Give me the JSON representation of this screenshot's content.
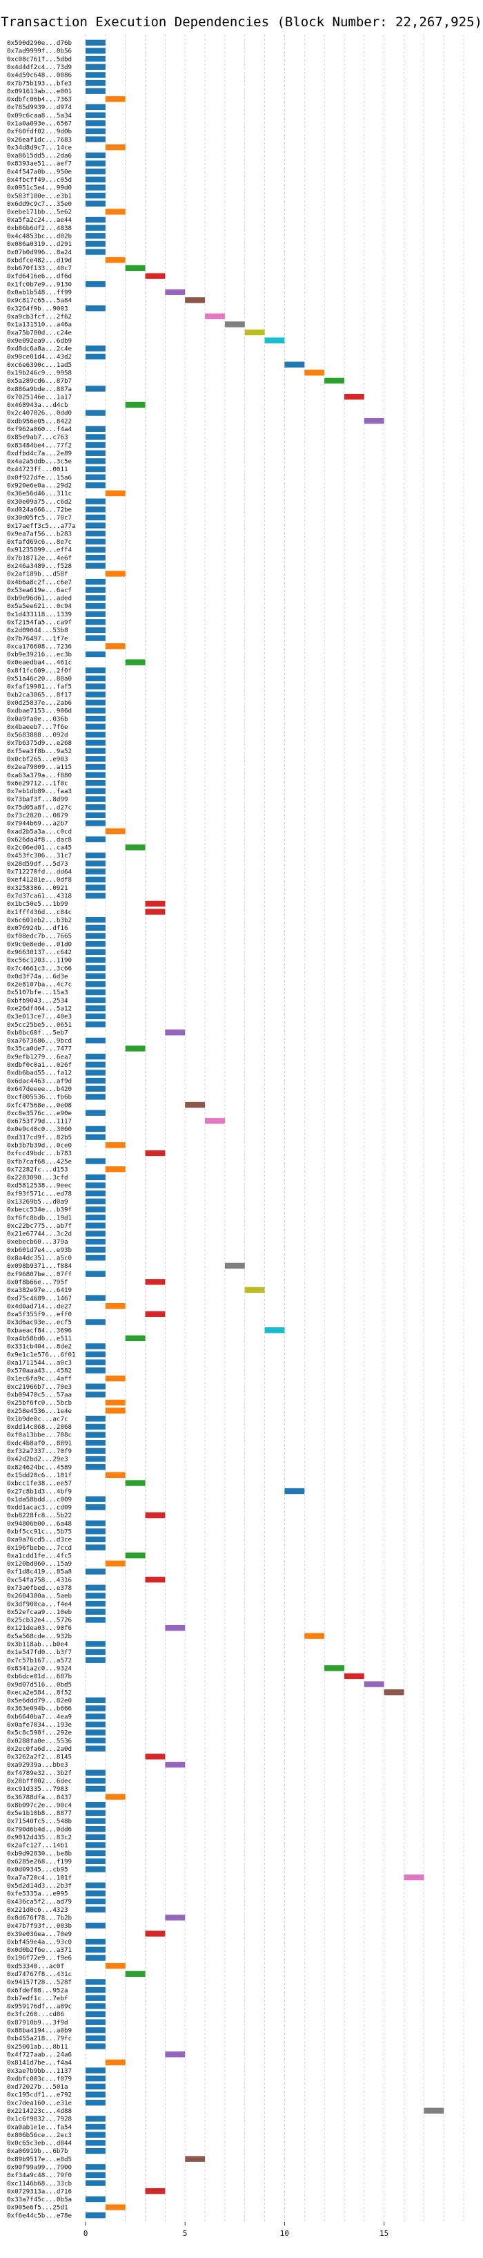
{
  "chart_data": {
    "type": "gantt-bar",
    "title": "Transaction Execution Dependencies (Block Number: 22,267,925)",
    "xlim": [
      0,
      19
    ],
    "x_ticks": [
      0,
      5,
      10,
      15
    ],
    "grid": "vertical-dashed",
    "colors": [
      "#1f77b4",
      "#ff7f0e",
      "#2ca02c",
      "#d62728",
      "#9467bd",
      "#8c564b",
      "#e377c2",
      "#7f7f7f",
      "#bcbd22",
      "#17becf"
    ],
    "rows": [
      [
        "0x590d290e...d76b",
        0
      ],
      [
        "0x7ad9999f...0b56",
        0
      ],
      [
        "0xc08c761f...5dbd",
        0
      ],
      [
        "0x4d4df2c4...73d9",
        0
      ],
      [
        "0x4d59c648...0086",
        0
      ],
      [
        "0x7b75b193...bfe3",
        0
      ],
      [
        "0x091613ab...e001",
        0
      ],
      [
        "0xdbfc06b4...7363",
        1
      ],
      [
        "0x785d9939...d974",
        0
      ],
      [
        "0x09c6caa8...5a34",
        0
      ],
      [
        "0x1a0a093e...6567",
        0
      ],
      [
        "0xf60fdf02...9d0b",
        0
      ],
      [
        "0x26eaf1dc...7683",
        0
      ],
      [
        "0x34d8d9c7...14ce",
        1
      ],
      [
        "0xa8615dd5...2da6",
        0
      ],
      [
        "0x8393ae51...aef7",
        0
      ],
      [
        "0x4f547a0b...950e",
        0
      ],
      [
        "0x4fbcff49...c05d",
        0
      ],
      [
        "0x0951c5e4...99d0",
        0
      ],
      [
        "0x583f180e...e3b1",
        0
      ],
      [
        "0x6dd9c9c7...35e0",
        0
      ],
      [
        "0xebe171bb...5e62",
        1
      ],
      [
        "0xa5fa2c24...ae44",
        0
      ],
      [
        "0xb86b6df2...4838",
        0
      ],
      [
        "0x4c4853bc...d02b",
        0
      ],
      [
        "0x086a0319...d291",
        0
      ],
      [
        "0x07b0d996...8a24",
        0
      ],
      [
        "0xbdfce482...d19d",
        1
      ],
      [
        "0xb670f133...40c7",
        2
      ],
      [
        "0xfd6416e6...df6d",
        3
      ],
      [
        "0x1fc0b7e9...9130",
        0
      ],
      [
        "0x0ab1b548...ff99",
        4
      ],
      [
        "0x9c817c65...5a84",
        5
      ],
      [
        "0x3264f9b...9003",
        0
      ],
      [
        "0xa9cb3fcf...2f62",
        6
      ],
      [
        "0x1a131510...a46a",
        7
      ],
      [
        "0xa75b780d...c24e",
        8
      ],
      [
        "0x9e092ea9...6db9",
        9
      ],
      [
        "0xd8dc6a8a...2c4e",
        0
      ],
      [
        "0x90ce01d4...43d2",
        0
      ],
      [
        "0xc6e6390c...1ad5",
        10
      ],
      [
        "0x19b246c9...9958",
        11
      ],
      [
        "0x5a289cd6...87b7",
        12
      ],
      [
        "0x886a9bde...887a",
        0
      ],
      [
        "0x7025146e...1a17",
        13
      ],
      [
        "0x468943a...d4cb",
        2
      ],
      [
        "0x2c407026...0dd0",
        0
      ],
      [
        "0xdb956e05...8422",
        14
      ],
      [
        "0xf962a060...f4a4",
        0
      ],
      [
        "0x85e9ab7...c763",
        0
      ],
      [
        "0x83484be4...77f2",
        0
      ],
      [
        "0xdfbd4c7a...2e89",
        0
      ],
      [
        "0x4a2a5ddb...3c5e",
        0
      ],
      [
        "0x44723ff...0011",
        0
      ],
      [
        "0x0f927dfe...15a6",
        0
      ],
      [
        "0x920e6e0a...29d2",
        0
      ],
      [
        "0x36e56d46...311c",
        1
      ],
      [
        "0x30e09a75...c6d2",
        0
      ],
      [
        "0xd024a666...72be",
        0
      ],
      [
        "0x30d05fc5...70c7",
        0
      ],
      [
        "0x17aeff3c5...a77a",
        0
      ],
      [
        "0x9ea7af56...b283",
        0
      ],
      [
        "0xfafd69c6...8e7c",
        0
      ],
      [
        "0x91235899...eff4",
        0
      ],
      [
        "0x7b18712e...4e6f",
        0
      ],
      [
        "0x246a3489...f528",
        0
      ],
      [
        "0x2af189b...d58f",
        1
      ],
      [
        "0x4b6a8c2f...c6e7",
        0
      ],
      [
        "0x53ea619e...6acf",
        0
      ],
      [
        "0xb9e96d61...aded",
        0
      ],
      [
        "0x5a5ee621...0c94",
        0
      ],
      [
        "0x1d433118...1339",
        0
      ],
      [
        "0xf2154fa5...ca9f",
        0
      ],
      [
        "0x2d09044...53b8",
        0
      ],
      [
        "0x7b76497...1f7e",
        0
      ],
      [
        "0xca176608...7236",
        1
      ],
      [
        "0xb9e39216...ec3b",
        0
      ],
      [
        "0x0eaedba4...461c",
        2
      ],
      [
        "0x8f1fc609...2f0f",
        0
      ],
      [
        "0x51a46c20...88a0",
        0
      ],
      [
        "0xfaf19981...faf5",
        0
      ],
      [
        "0xb2ca3865...8f17",
        0
      ],
      [
        "0x0d25837e...2ab6",
        0
      ],
      [
        "0xdbae7153...906d",
        0
      ],
      [
        "0x0a9fa0e...036b",
        0
      ],
      [
        "0x4baeeb7...7f6e",
        0
      ],
      [
        "0x5683808...092d",
        0
      ],
      [
        "0x7b6375d9...e268",
        0
      ],
      [
        "0xf5ea3f8b...9a52",
        0
      ],
      [
        "0x0cbf265...e903",
        0
      ],
      [
        "0x2ea79809...a115",
        0
      ],
      [
        "0xa63a379a...f880",
        0
      ],
      [
        "0x6e29712...1f0c",
        0
      ],
      [
        "0x7eb1db89...faa3",
        0
      ],
      [
        "0x73baf3f...8d99",
        0
      ],
      [
        "0x75d05a8f...d27c",
        0
      ],
      [
        "0x73c2820...0879",
        0
      ],
      [
        "0x7944b69...a2b7",
        0
      ],
      [
        "0xad2b5a3a...c0cd",
        1
      ],
      [
        "0x626da4f8...dac8",
        0
      ],
      [
        "0x2c06ed01...ca45",
        2
      ],
      [
        "0x453fc306...31c7",
        0
      ],
      [
        "0x28d59df...5d73",
        0
      ],
      [
        "0x712270fd...dd64",
        0
      ],
      [
        "0xef41281e...0df8",
        0
      ],
      [
        "0x3258306...0921",
        0
      ],
      [
        "0x7d37ca61...4318",
        0
      ],
      [
        "0x1bc50e5...1b99",
        3
      ],
      [
        "0x1fff436d...c84c",
        3
      ],
      [
        "0x6c601eb2...b3b2",
        0
      ],
      [
        "0x076924b...df16",
        0
      ],
      [
        "0xf08edc7b...7665",
        0
      ],
      [
        "0x9c0e8ede...01d0",
        0
      ],
      [
        "0x96630137...c642",
        0
      ],
      [
        "0xc56c1203...1190",
        0
      ],
      [
        "0x7c4661c3...3c66",
        0
      ],
      [
        "0x0d3f74a...6d3e",
        0
      ],
      [
        "0x2e8107ba...4c7c",
        0
      ],
      [
        "0x5107bfe...15a3",
        0
      ],
      [
        "0xbfb9043...2534",
        0
      ],
      [
        "0xe26df464...5a12",
        0
      ],
      [
        "0x3e013ce7...40e3",
        0
      ],
      [
        "0x5cc25be5...0651",
        0
      ],
      [
        "0xb8bc60f...5eb7",
        4
      ],
      [
        "0xa7673686...9bcd",
        0
      ],
      [
        "0x35ca0de7...7477",
        2
      ],
      [
        "0x9efb1279...6ea7",
        0
      ],
      [
        "0xdbf0c0a1...026f",
        0
      ],
      [
        "0xdb6bad55...fa12",
        0
      ],
      [
        "0x6dac4463...af9d",
        0
      ],
      [
        "0x647deeee...b420",
        0
      ],
      [
        "0xcf805536...fb6b",
        0
      ],
      [
        "0xfc47568e...0e08",
        5
      ],
      [
        "0xc8e3576c...e90e",
        0
      ],
      [
        "0x6753f79d...1117",
        6
      ],
      [
        "0x0e9c40c0...3060",
        0
      ],
      [
        "0xd317cd9f...82b5",
        0
      ],
      [
        "0xb3b7b39d...0ce0",
        1
      ],
      [
        "0xfcc49bdc...b783",
        3
      ],
      [
        "0xfb7caf68...425e",
        0
      ],
      [
        "0x72282fc...d153",
        1
      ],
      [
        "0x2283090...3cfd",
        0
      ],
      [
        "0xd5812538...9eec",
        0
      ],
      [
        "0xf93f571c...ed78",
        0
      ],
      [
        "0x13269b5...d0a9",
        0
      ],
      [
        "0xbecc534e...b39f",
        0
      ],
      [
        "0xf6fc8bdb...19d1",
        0
      ],
      [
        "0xc22bc775...ab7f",
        0
      ],
      [
        "0x21e67744...3c2d",
        0
      ],
      [
        "0xebecb60...379a",
        0
      ],
      [
        "0xb601d7e4...e93b",
        0
      ],
      [
        "0x8a4dc351...a5c0",
        0
      ],
      [
        "0x098b9371...f884",
        7
      ],
      [
        "0xf96807be...07ff",
        0
      ],
      [
        "0x0f8b66e...795f",
        3
      ],
      [
        "0xa382e97e...6419",
        8
      ],
      [
        "0xd75c4689...1467",
        0
      ],
      [
        "0x4d0ad714...de27",
        1
      ],
      [
        "0xa5f355f9...eff0",
        3
      ],
      [
        "0x3d6ac93e...ecf5",
        0
      ],
      [
        "0xbaeacf84...3696",
        9
      ],
      [
        "0xa4b58bd6...e511",
        2
      ],
      [
        "0x331cb404...8de2",
        0
      ],
      [
        "0x9e1c1e576...6f01",
        0
      ],
      [
        "0xa1711544...a0c3",
        0
      ],
      [
        "0x570aaa43...4582",
        0
      ],
      [
        "0x1ec6fa9c...4aff",
        1
      ],
      [
        "0xc21966b7...70e3",
        0
      ],
      [
        "0xb09470c5...57aa",
        0
      ],
      [
        "0x25bf6fc0...5bcb",
        1
      ],
      [
        "0x258e4536...1e4e",
        1
      ],
      [
        "0x1b9de0c...ac7c",
        0
      ],
      [
        "0xdd14c868...2868",
        0
      ],
      [
        "0xf0a13bbe...708c",
        0
      ],
      [
        "0xdc4b8af0...8891",
        0
      ],
      [
        "0xf32a7337...70f9",
        0
      ],
      [
        "0x42d2bd2...29e3",
        0
      ],
      [
        "0x824624bc...4589",
        0
      ],
      [
        "0x15dd20c6...101f",
        1
      ],
      [
        "0xbcc1fe38...ee57",
        2
      ],
      [
        "0x27c8b1d3...4bf9",
        10
      ],
      [
        "0x1da58bdd...c009",
        0
      ],
      [
        "0xdd1acac3...cd09",
        0
      ],
      [
        "0xb8228fc8...5b22",
        3
      ],
      [
        "0x94806b00...6a48",
        0
      ],
      [
        "0xbf5cc91c...5b75",
        0
      ],
      [
        "0xa9a76cd5...d3ce",
        0
      ],
      [
        "0x196fbebe...7ccd",
        0
      ],
      [
        "0xa1cdd1fe...4fc5",
        2
      ],
      [
        "0x120bd860...15a9",
        1
      ],
      [
        "0xf1d8c419...85a8",
        0
      ],
      [
        "0xc54fa758...4316",
        3
      ],
      [
        "0x73a0fbed...e378",
        0
      ],
      [
        "0x2604380a...5aeb",
        0
      ],
      [
        "0x3df900ca...f4e4",
        0
      ],
      [
        "0x52efcaa9...10eb",
        0
      ],
      [
        "0x25cb32e4...5726",
        0
      ],
      [
        "0x121dea03...90f6",
        4
      ],
      [
        "0x5a568cde...932b",
        11
      ],
      [
        "0x3b118ab...b0e4",
        0
      ],
      [
        "0x1e547fd0...b3f7",
        0
      ],
      [
        "0x7c57b167...a572",
        0
      ],
      [
        "0x8341a2c0...9324",
        12
      ],
      [
        "0xb6dce01d...687b",
        13
      ],
      [
        "0x9d07d516...0bd5",
        14
      ],
      [
        "0xeca2e584...8f52",
        15
      ],
      [
        "0x5e6ddd79...82e0",
        0
      ],
      [
        "0x363e094b...b666",
        0
      ],
      [
        "0xb6640ba7...4ea9",
        0
      ],
      [
        "0x0afe7034...193e",
        0
      ],
      [
        "0x5c8c598f...292e",
        0
      ],
      [
        "0x0288fa0e...5536",
        0
      ],
      [
        "0x2ec0fa6d...2a0d",
        0
      ],
      [
        "0x3262a2f2...8145",
        3
      ],
      [
        "0xa92939a...bbe3",
        4
      ],
      [
        "0xf4789e32...3b2f",
        0
      ],
      [
        "0x28bff002...6dec",
        0
      ],
      [
        "0xc91d335...7983",
        0
      ],
      [
        "0x36788dfa...8437",
        1
      ],
      [
        "0x8b097c2e...90c4",
        0
      ],
      [
        "0x5e1b10b8...8877",
        0
      ],
      [
        "0x71540fc5...548b",
        0
      ],
      [
        "0x790d6b4d...0dd6",
        0
      ],
      [
        "0x9012d435...83c2",
        0
      ],
      [
        "0x2afc127...14b1",
        0
      ],
      [
        "0xb9d92830...be8b",
        0
      ],
      [
        "0x6285e268...f199",
        0
      ],
      [
        "0x0d09345...cb95",
        0
      ],
      [
        "0xa7a720c4...101f",
        16
      ],
      [
        "0x5d2d14d3...2b3f",
        0
      ],
      [
        "0xfe5335a...e995",
        0
      ],
      [
        "0x436ca5f2...ad79",
        0
      ],
      [
        "0x221d0c6...4323",
        0
      ],
      [
        "0x8d676f78...7b2b",
        4
      ],
      [
        "0x47b7f93f...003b",
        0
      ],
      [
        "0x39e036ea...70e9",
        3
      ],
      [
        "0xbf459e4a...93c0",
        0
      ],
      [
        "0x0d0b2f6e...a371",
        0
      ],
      [
        "0x196f72e9...f9e6",
        0
      ],
      [
        "0xd53340...ac0f",
        1
      ],
      [
        "0xd74767f8...431c",
        2
      ],
      [
        "0x94157f28...528f",
        0
      ],
      [
        "0x6fdef08...952a",
        0
      ],
      [
        "0xb7edf1c...7ebf",
        0
      ],
      [
        "0x959176df...a89c",
        0
      ],
      [
        "0x3fc260...cd86",
        0
      ],
      [
        "0x87910b9...3f9d",
        0
      ],
      [
        "0x88ba4194...a0b9",
        0
      ],
      [
        "0xb455a218...79fc",
        0
      ],
      [
        "0x25001ab...8b11",
        0
      ],
      [
        "0x4f727aab...24a6",
        4
      ],
      [
        "0x8141d7be...f4a4",
        1
      ],
      [
        "0x3ae7b9bb...1137",
        0
      ],
      [
        "0xdbfc003c...f079",
        0
      ],
      [
        "0xd72027b...501a",
        0
      ],
      [
        "0xc195cdf1...e792",
        0
      ],
      [
        "0xc7dea160...e31e",
        0
      ],
      [
        "0x2214223c...4d88",
        17
      ],
      [
        "0x1c6f9832...7928",
        0
      ],
      [
        "0xa0ab1e1e...fa54",
        0
      ],
      [
        "0x806b56ce...2ec3",
        0
      ],
      [
        "0x0c65c3eb...d844",
        0
      ],
      [
        "0xa06919b...6b7b",
        0
      ],
      [
        "0x89b9517e...e8d5",
        5
      ],
      [
        "0x90f99a99...7900",
        0
      ],
      [
        "0xf34a9c48...79f0",
        0
      ],
      [
        "0xc1146b68...33cb",
        0
      ],
      [
        "0x0729313a...d716",
        3
      ],
      [
        "0x33a7f45c...0b5a",
        0
      ],
      [
        "0x905e6f5...25d1",
        1
      ],
      [
        "0xf6e44c5b...e78e",
        0
      ]
    ]
  }
}
